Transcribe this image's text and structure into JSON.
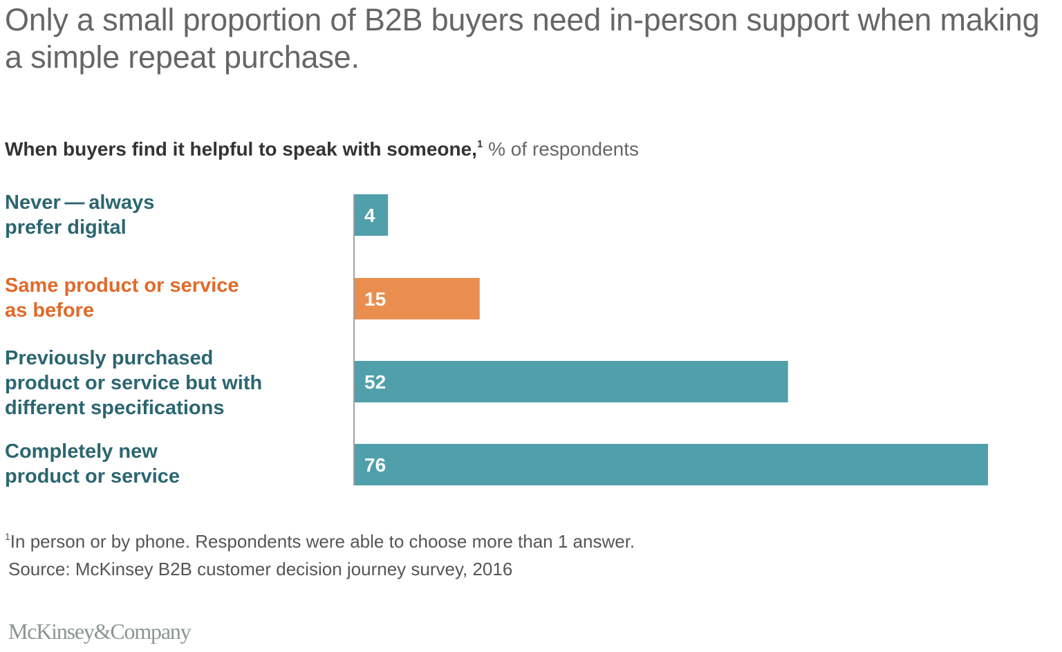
{
  "chart_data": {
    "type": "bar",
    "orientation": "horizontal",
    "title": "Only a small proportion of B2B buyers need in-person support when making a simple repeat purchase.",
    "subtitle": {
      "bold": "When buyers find it helpful to speak with someone,",
      "footnote_marker": "1",
      "unit": " % of respondents"
    },
    "categories": [
      "Never—always prefer digital",
      "Same product or service as before",
      "Previously purchased product or service but with different specifications",
      "Completely new product or service"
    ],
    "category_label_lines": [
      [
        "Never — always",
        "prefer digital"
      ],
      [
        "Same product or service",
        "as before"
      ],
      [
        "Previously purchased",
        "product or service but with",
        "different specifications"
      ],
      [
        "Completely new",
        "product or service"
      ]
    ],
    "values": [
      4,
      15,
      52,
      76
    ],
    "data_labels": [
      "4",
      "15",
      "52",
      "76"
    ],
    "bar_colors": [
      "#4fa0ab",
      "#ea8e4f",
      "#4fa0ab",
      "#4fa0ab"
    ],
    "label_colors": [
      "#2b6670",
      "#e06a2a",
      "#2b6670",
      "#2b6670"
    ],
    "highlight_index": 1,
    "xlabel": "",
    "ylabel": "",
    "xlim": [
      0,
      76
    ],
    "grid": false,
    "legend": "none"
  },
  "footnote": {
    "marker": "1",
    "text": "In person or by phone. Respondents were able to choose more than 1 answer."
  },
  "source": "Source: McKinsey B2B customer decision journey survey, 2016",
  "brand": {
    "logo_text": "McKinsey&Company"
  },
  "colors": {
    "teal_bar": "#4fa0ab",
    "orange_bar": "#ea8e4f",
    "teal_text": "#2b6670",
    "orange_text": "#e06a2a",
    "title_gray": "#666666",
    "axis_gray": "#a0a0a0"
  }
}
